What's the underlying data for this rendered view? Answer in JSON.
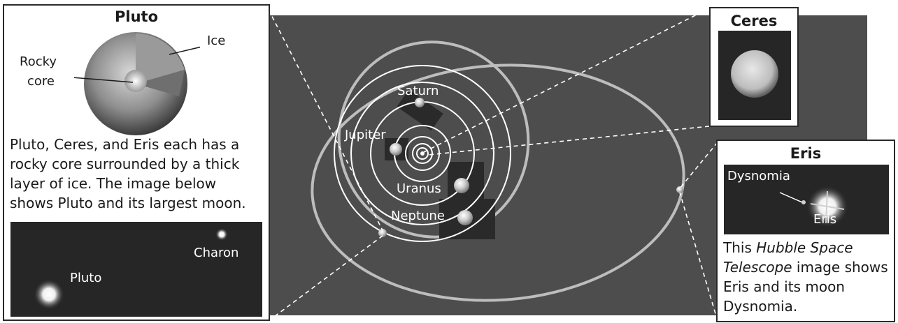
{
  "pluto_panel": {
    "title": "Pluto",
    "labels": {
      "rocky": "Rocky",
      "core": "core",
      "ice": "Ice"
    },
    "caption_lines": [
      "Pluto, Ceres, and Eris each has a",
      "rocky core surrounded by a thick",
      "layer of ice. The image below",
      "shows Pluto and its largest moon."
    ],
    "photo_labels": {
      "charon": "Charon",
      "pluto": "Pluto"
    }
  },
  "solar_system": {
    "planets": {
      "saturn": "Saturn",
      "jupiter": "Jupiter",
      "uranus": "Uranus",
      "neptune": "Neptune"
    }
  },
  "ceres_panel": {
    "title": "Ceres"
  },
  "eris_panel": {
    "title": "Eris",
    "photo_labels": {
      "dysnomia": "Dysnomia",
      "eris": "Eris"
    },
    "caption": {
      "line1_pre": "This ",
      "line1_italic": "Hubble Space",
      "line2_italic": "Telescope",
      "line2_post": " image shows",
      "line3": "Eris and its moon",
      "line4": "Dysnomia."
    }
  },
  "colors": {
    "space": "#4d4d4d",
    "dark_photo": "#262626",
    "orbit_white": "#ffffff",
    "orbit_gray": "#bdbdbd"
  }
}
